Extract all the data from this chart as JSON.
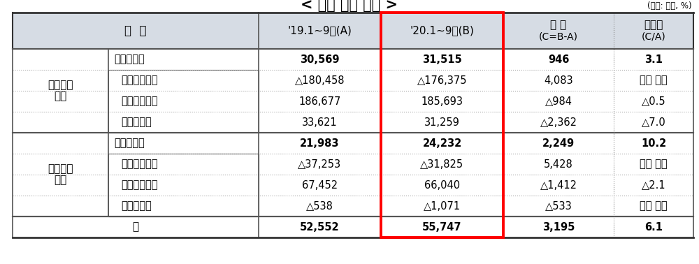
{
  "title": "< 주요 손익 현황 >",
  "unit_note": "(단위: 억원, %)",
  "header": [
    "구  분",
    "'19.1~9월(A)",
    "'20.1~9월(B)",
    "증 감\n(C=B-A)",
    "증감률\n(C/A)"
  ],
  "rows": [
    {
      "category": "생명보험\n회사",
      "sub_rows": [
        {
          "label": "당기순이익",
          "bold": true,
          "indent": false,
          "vals": [
            "30,569",
            "31,515",
            "946",
            "3.1"
          ]
        },
        {
          "label": "보험영업이익",
          "bold": false,
          "indent": true,
          "vals": [
            "△180,458",
            "△176,375",
            "4,083",
            "손실 축소"
          ]
        },
        {
          "label": "투자영업이익",
          "bold": false,
          "indent": true,
          "vals": [
            "186,677",
            "185,693",
            "△984",
            "△0.5"
          ]
        },
        {
          "label": "영업외이익",
          "bold": false,
          "indent": true,
          "vals": [
            "33,621",
            "31,259",
            "△2,362",
            "△7.0"
          ]
        }
      ]
    },
    {
      "category": "손해보험\n회사",
      "sub_rows": [
        {
          "label": "당기순이익",
          "bold": true,
          "indent": false,
          "vals": [
            "21,983",
            "24,232",
            "2,249",
            "10.2"
          ]
        },
        {
          "label": "보험영업이익",
          "bold": false,
          "indent": true,
          "vals": [
            "△37,253",
            "△31,825",
            "5,428",
            "손실 축소"
          ]
        },
        {
          "label": "투자영업이익",
          "bold": false,
          "indent": true,
          "vals": [
            "67,452",
            "66,040",
            "△1,412",
            "△2.1"
          ]
        },
        {
          "label": "영업외이익",
          "bold": false,
          "indent": true,
          "vals": [
            "△538",
            "△1,071",
            "△533",
            "손실 확대"
          ]
        }
      ]
    }
  ],
  "total_row": {
    "label": "계",
    "vals": [
      "52,552",
      "55,747",
      "3,195",
      "6.1"
    ]
  },
  "header_bg": "#d6dce4",
  "title_fontsize": 15,
  "header_fontsize": 11,
  "cell_fontsize": 10.5
}
